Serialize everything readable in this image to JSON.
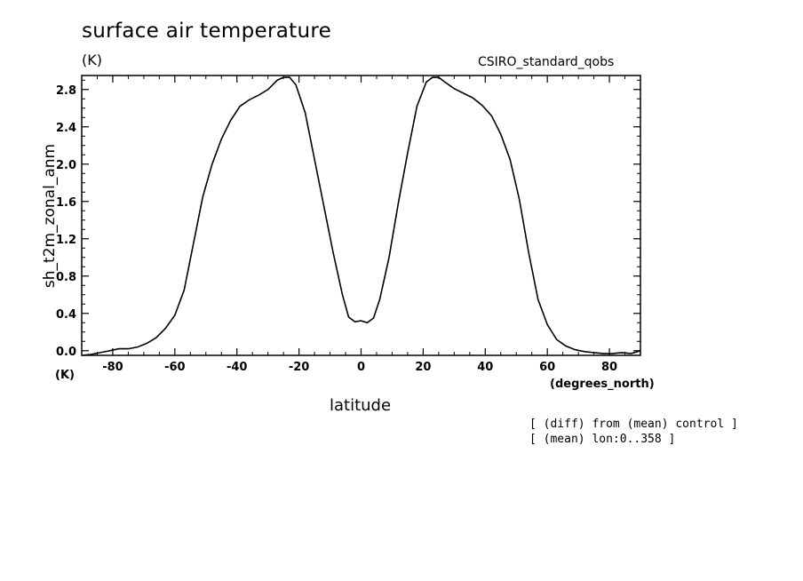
{
  "title": "surface air temperature",
  "units": "(K)",
  "model": "CSIRO_standard_qobs",
  "ylabel": "sh_t2m_zonal_anm",
  "y_unit_label": "(K)",
  "x_unit_label": "(degrees_north)",
  "xlabel": "latitude",
  "notes": [
    "[ (diff) from (mean) control ]",
    "[ (mean) lon:0..358 ]"
  ],
  "chart_data": {
    "type": "line",
    "title": "surface air temperature",
    "xlabel": "latitude",
    "ylabel": "sh_t2m_zonal_anm",
    "xlim": [
      -90,
      90
    ],
    "ylim": [
      -0.05,
      2.95
    ],
    "xticks": [
      -80,
      -60,
      -40,
      -20,
      0,
      20,
      40,
      60,
      80
    ],
    "xtick_labels": [
      "-80",
      "-60",
      "-40",
      "-20",
      "0",
      "20",
      "40",
      "60",
      "80"
    ],
    "yticks": [
      0.0,
      0.4,
      0.8,
      1.2,
      1.6,
      2.0,
      2.4,
      2.8
    ],
    "ytick_labels": [
      "0.0",
      "0.4",
      "0.8",
      "1.2",
      "1.6",
      "2.0",
      "2.4",
      "2.8"
    ],
    "grid": false,
    "series": [
      {
        "x": [
          -90,
          -87,
          -84,
          -81,
          -78,
          -75,
          -72,
          -69,
          -66,
          -63,
          -60,
          -57,
          -54,
          -51,
          -48,
          -45,
          -42,
          -39,
          -36,
          -33,
          -30,
          -27,
          -25,
          -23,
          -21,
          -18,
          -15,
          -12,
          -9,
          -6,
          -4,
          -2,
          0,
          2,
          4,
          6,
          9,
          12,
          15,
          18,
          21,
          23,
          25,
          27,
          30,
          33,
          36,
          39,
          42,
          45,
          48,
          51,
          54,
          57,
          60,
          63,
          66,
          69,
          72,
          75,
          78,
          81,
          84,
          87,
          90
        ],
        "y": [
          -0.05,
          -0.04,
          -0.02,
          0.0,
          0.02,
          0.02,
          0.04,
          0.08,
          0.14,
          0.24,
          0.38,
          0.65,
          1.15,
          1.65,
          2.0,
          2.27,
          2.47,
          2.62,
          2.69,
          2.74,
          2.8,
          2.9,
          2.93,
          2.93,
          2.85,
          2.55,
          2.05,
          1.55,
          1.05,
          0.6,
          0.36,
          0.31,
          0.32,
          0.3,
          0.35,
          0.55,
          1.0,
          1.58,
          2.12,
          2.62,
          2.88,
          2.93,
          2.93,
          2.88,
          2.81,
          2.76,
          2.71,
          2.63,
          2.52,
          2.32,
          2.05,
          1.62,
          1.05,
          0.55,
          0.28,
          0.12,
          0.05,
          0.01,
          -0.01,
          -0.02,
          -0.03,
          -0.03,
          -0.02,
          -0.03,
          0.0
        ]
      }
    ]
  }
}
